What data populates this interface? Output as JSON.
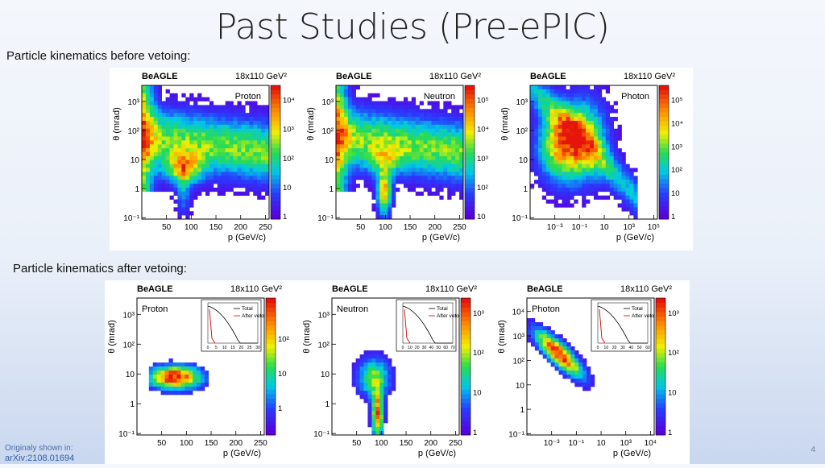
{
  "slide": {
    "title": "Past Studies (Pre-ePIC)",
    "before_label": "Particle kinematics before vetoing:",
    "after_label": "Particle kinematics after vetoing:",
    "footer_note": "Originaly shown in:",
    "footer_link": "arXiv:2108.01694",
    "page_number": "4"
  },
  "chart_data": [
    {
      "type": "heatmap",
      "group": "before",
      "tag": "BeAGLE",
      "energy": "18x110 GeV²",
      "particle": "Proton",
      "ylabel": "θ (mrad)",
      "xlabel": "p (GeV/c)",
      "xticks": [
        "50",
        "100",
        "150",
        "200",
        "250"
      ],
      "yticks": [
        "10⁻¹",
        "1",
        "10",
        "10²",
        "10³"
      ],
      "zticks": [
        "1",
        "10",
        "10²",
        "10³",
        "10⁴"
      ]
    },
    {
      "type": "heatmap",
      "group": "before",
      "tag": "BeAGLE",
      "energy": "18x110 GeV²",
      "particle": "Neutron",
      "ylabel": "θ (mrad)",
      "xlabel": "p (GeV/c)",
      "xticks": [
        "50",
        "100",
        "150",
        "200",
        "250"
      ],
      "yticks": [
        "10⁻¹",
        "1",
        "10",
        "10²",
        "10³"
      ],
      "zticks": [
        "10",
        "10²",
        "10³",
        "10⁴",
        "10⁵"
      ]
    },
    {
      "type": "heatmap",
      "group": "before",
      "tag": "BeAGLE",
      "energy": "18x110 GeV²",
      "particle": "Photon",
      "ylabel": "θ (mrad)",
      "xlabel": "p (GeV/c)",
      "xticks": [
        "10⁻³",
        "10⁻¹",
        "10",
        "10³",
        "10⁵"
      ],
      "yticks": [
        "10⁻¹",
        "1",
        "10",
        "10²",
        "10³"
      ],
      "zticks": [
        "1",
        "10",
        "10²",
        "10³",
        "10⁴",
        "10⁵"
      ]
    },
    {
      "type": "heatmap",
      "group": "after",
      "tag": "BeAGLE",
      "energy": "18x110 GeV²",
      "particle": "Proton",
      "ylabel": "θ (mrad)",
      "xlabel": "p (GeV/c)",
      "xticks": [
        "50",
        "100",
        "150",
        "200",
        "250"
      ],
      "yticks": [
        "10⁻¹",
        "1",
        "10",
        "10²",
        "10³"
      ],
      "zticks": [
        "1",
        "10",
        "10²"
      ],
      "inset": {
        "legend": [
          "Total",
          "After veto"
        ],
        "xticks": [
          "0",
          "5",
          "10",
          "15",
          "20",
          "25",
          "30"
        ]
      }
    },
    {
      "type": "heatmap",
      "group": "after",
      "tag": "BeAGLE",
      "energy": "18x110 GeV²",
      "particle": "Neutron",
      "ylabel": "θ (mrad)",
      "xlabel": "p (GeV/c)",
      "xticks": [
        "50",
        "100",
        "150",
        "200",
        "250"
      ],
      "yticks": [
        "10⁻¹",
        "1",
        "10",
        "10²",
        "10³"
      ],
      "zticks": [
        "1",
        "10",
        "10²",
        "10³"
      ],
      "inset": {
        "legend": [
          "Total",
          "After veto"
        ],
        "xticks": [
          "0",
          "10",
          "20",
          "30",
          "40",
          "50",
          "60",
          "70"
        ]
      }
    },
    {
      "type": "heatmap",
      "group": "after",
      "tag": "BeAGLE",
      "energy": "18x110 GeV²",
      "particle": "Photon",
      "ylabel": "θ (mrad)",
      "xlabel": "p (GeV/c)",
      "xticks": [
        "10⁻³",
        "10⁻¹",
        "10",
        "10³",
        "10⁴"
      ],
      "yticks": [
        "10⁻¹",
        "1",
        "10",
        "10²",
        "10³",
        "10⁴"
      ],
      "zticks": [
        "1",
        "10",
        "10²",
        "10³"
      ],
      "inset": {
        "legend": [
          "Total",
          "After veto"
        ],
        "xticks": [
          "0",
          "10",
          "20",
          "30",
          "40",
          "50",
          "60"
        ]
      }
    }
  ]
}
